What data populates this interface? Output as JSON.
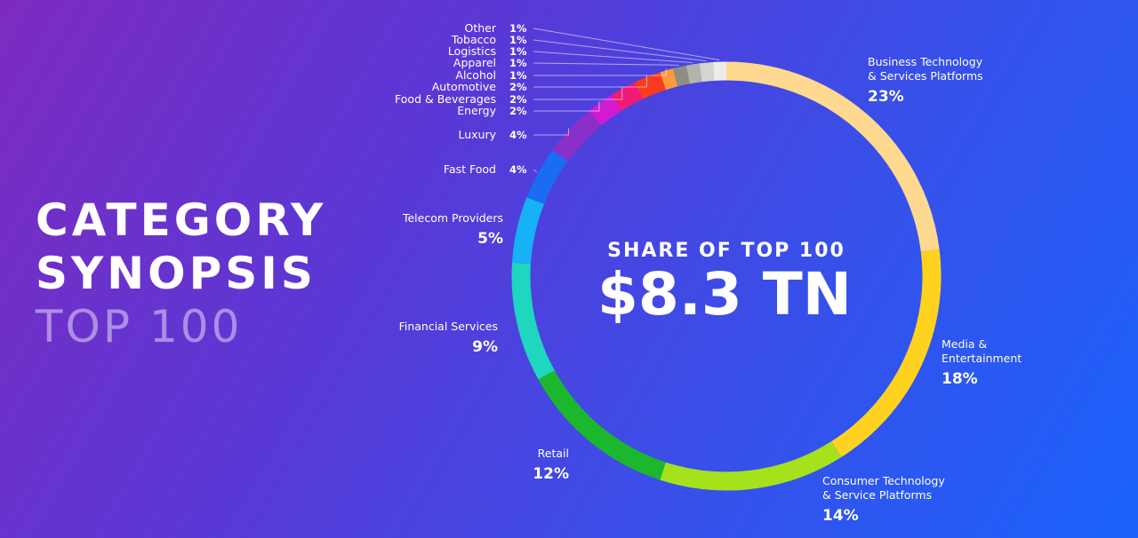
{
  "slide": {
    "title_line1": "CATEGORY",
    "title_line2": "SYNOPSIS",
    "title_line3": "TOP 100"
  },
  "center": {
    "subtitle": "SHARE OF TOP 100",
    "value": "$8.3 TN"
  },
  "chart_data": {
    "type": "pie",
    "variant": "donut",
    "title": "SHARE OF TOP 100",
    "total_label": "$8.3 TN",
    "unit": "%",
    "legend": "none (direct labels)",
    "slices": [
      {
        "name": "Business Technology & Services Platforms",
        "name_lines": [
          "Business Technology",
          "& Services Platforms"
        ],
        "value": 23,
        "pct_label": "23%",
        "color": "#ffd98f"
      },
      {
        "name": "Media & Entertainment",
        "name_lines": [
          "Media &",
          "Entertainment"
        ],
        "value": 18,
        "pct_label": "18%",
        "color": "#ffd21f"
      },
      {
        "name": "Consumer Technology & Service Platforms",
        "name_lines": [
          "Consumer Technology",
          "& Service Platforms"
        ],
        "value": 14,
        "pct_label": "14%",
        "color": "#a5e21c"
      },
      {
        "name": "Retail",
        "name_lines": [
          "Retail"
        ],
        "value": 12,
        "pct_label": "12%",
        "color": "#1bb82e"
      },
      {
        "name": "Financial Services",
        "name_lines": [
          "Financial Services"
        ],
        "value": 9,
        "pct_label": "9%",
        "color": "#1fd6be"
      },
      {
        "name": "Telecom Providers",
        "name_lines": [
          "Telecom Providers"
        ],
        "value": 5,
        "pct_label": "5%",
        "color": "#16b2f5"
      },
      {
        "name": "Fast Food",
        "name_lines": [
          "Fast Food"
        ],
        "value": 4,
        "pct_label": "4%",
        "color": "#1a6cf2"
      },
      {
        "name": "Luxury",
        "name_lines": [
          "Luxury"
        ],
        "value": 4,
        "pct_label": "4%",
        "color": "#8b2fc9"
      },
      {
        "name": "Energy",
        "name_lines": [
          "Energy"
        ],
        "value": 2,
        "pct_label": "2%",
        "color": "#d21ad1"
      },
      {
        "name": "Food & Beverages",
        "name_lines": [
          "Food & Beverages"
        ],
        "value": 2,
        "pct_label": "2%",
        "color": "#f01a78"
      },
      {
        "name": "Automotive",
        "name_lines": [
          "Automotive"
        ],
        "value": 2,
        "pct_label": "2%",
        "color": "#fa3b1d"
      },
      {
        "name": "Alcohol",
        "name_lines": [
          "Alcohol"
        ],
        "value": 1,
        "pct_label": "1%",
        "color": "#ff9a3a"
      },
      {
        "name": "Apparel",
        "name_lines": [
          "Apparel"
        ],
        "value": 1,
        "pct_label": "1%",
        "color": "#8e8e82"
      },
      {
        "name": "Logistics",
        "name_lines": [
          "Logistics"
        ],
        "value": 1,
        "pct_label": "1%",
        "color": "#b4b4ac"
      },
      {
        "name": "Tobacco",
        "name_lines": [
          "Tobacco"
        ],
        "value": 1,
        "pct_label": "1%",
        "color": "#d4d4d0"
      },
      {
        "name": "Other",
        "name_lines": [
          "Other"
        ],
        "value": 1,
        "pct_label": "1%",
        "color": "#ececea"
      }
    ]
  }
}
